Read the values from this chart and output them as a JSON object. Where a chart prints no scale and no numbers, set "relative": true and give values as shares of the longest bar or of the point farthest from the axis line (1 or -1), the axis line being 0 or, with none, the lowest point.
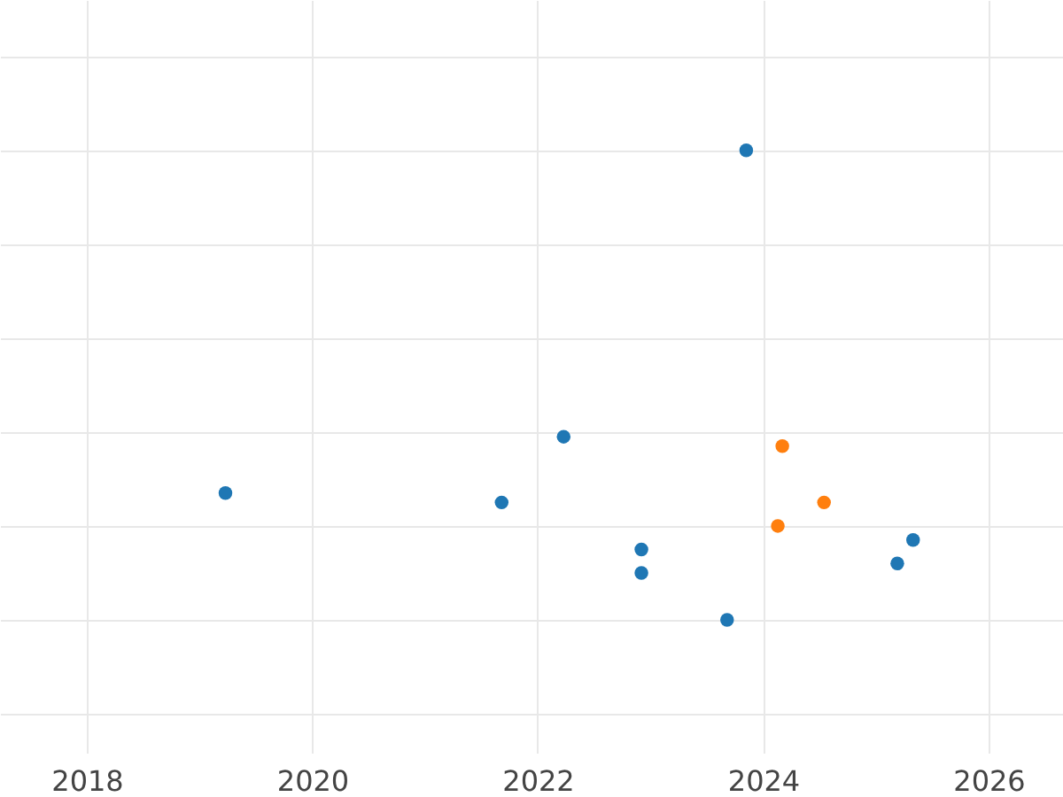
{
  "chart_data": {
    "type": "scatter",
    "relative": true,
    "xlim": [
      2017.23,
      2026.66
    ],
    "xticks": [
      2018,
      2020,
      2022,
      2024,
      2026
    ],
    "grid": true,
    "marker": "circle",
    "series": [
      {
        "color": "#1f77b4",
        "x": [
          2019.23,
          2021.68,
          2022.23,
          2022.92,
          2022.92,
          2023.68,
          2023.85,
          2025.19,
          2025.33
        ],
        "values": [
          0.27,
          0.25,
          0.39,
          0.15,
          0.1,
          0,
          1,
          0.12,
          0.17
        ]
      },
      {
        "color": "#ff7f0e",
        "x": [
          2024.17,
          2024.13,
          2024.54
        ],
        "values": [
          0.37,
          0.2,
          0.25
        ]
      }
    ]
  }
}
